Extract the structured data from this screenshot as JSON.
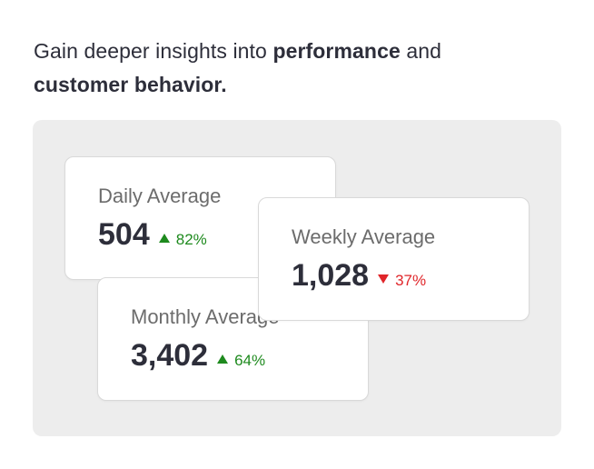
{
  "headline": {
    "part1": "Gain deeper insights into ",
    "bold1": "performance",
    "part2": " and ",
    "bold2": "customer behavior."
  },
  "cards": {
    "daily": {
      "label": "Daily Average",
      "value": "504",
      "delta": "82%",
      "direction": "up"
    },
    "weekly": {
      "label": "Weekly Average",
      "value": "1,028",
      "delta": "37%",
      "direction": "down"
    },
    "monthly": {
      "label": "Monthly Average",
      "value": "3,402",
      "delta": "64%",
      "direction": "up"
    }
  },
  "colors": {
    "up": "#1e8a1e",
    "down": "#e0262a",
    "panel": "#ededed"
  }
}
